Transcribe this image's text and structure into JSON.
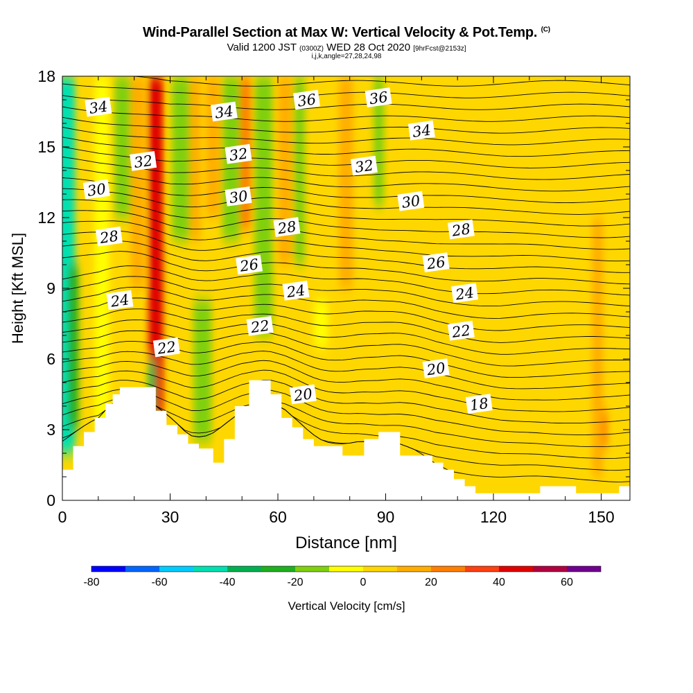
{
  "header": {
    "title": "Wind-Parallel Section at Max W: Vertical Velocity & Pot.Temp.",
    "title_mark": "(C)",
    "valid_prefix": "Valid 1200 JST",
    "valid_utc": "(0300Z)",
    "valid_date": "WED 28 Oct 2020",
    "forecast": "[9hrFcst@2153z]",
    "params": "i,j,k,angle=27,28,24,98"
  },
  "chart_data": {
    "type": "heatmap",
    "xlabel": "Distance [nm]",
    "ylabel": "Height [Kft MSL]",
    "xlim": [
      0,
      158
    ],
    "ylim": [
      0,
      18
    ],
    "x_ticks": [
      0,
      30,
      60,
      90,
      120,
      150
    ],
    "y_ticks": [
      0,
      3,
      6,
      9,
      12,
      15,
      18
    ],
    "x_tick_labels": [
      "0",
      "30",
      "60",
      "90",
      "120",
      "150"
    ],
    "y_tick_labels": [
      "0",
      "3",
      "6",
      "9",
      "12",
      "15",
      "18"
    ],
    "background_value_cms": 0,
    "terrain_kft": [
      [
        0,
        1.3
      ],
      [
        3,
        1.3
      ],
      [
        3,
        2.3
      ],
      [
        6,
        2.3
      ],
      [
        6,
        2.9
      ],
      [
        9,
        2.9
      ],
      [
        9,
        3.5
      ],
      [
        12,
        3.5
      ],
      [
        12,
        4.1
      ],
      [
        14,
        4.1
      ],
      [
        14,
        4.5
      ],
      [
        16,
        4.5
      ],
      [
        16,
        4.8
      ],
      [
        26,
        4.8
      ],
      [
        26,
        3.8
      ],
      [
        29,
        3.8
      ],
      [
        29,
        3.2
      ],
      [
        32,
        3.2
      ],
      [
        32,
        2.8
      ],
      [
        35,
        2.8
      ],
      [
        35,
        2.4
      ],
      [
        38,
        2.4
      ],
      [
        38,
        2.2
      ],
      [
        42,
        2.2
      ],
      [
        42,
        1.6
      ],
      [
        45,
        1.6
      ],
      [
        45,
        2.6
      ],
      [
        48,
        2.6
      ],
      [
        48,
        4.0
      ],
      [
        52,
        4.0
      ],
      [
        52,
        5.1
      ],
      [
        58,
        5.1
      ],
      [
        58,
        4.5
      ],
      [
        61,
        4.5
      ],
      [
        61,
        3.5
      ],
      [
        64,
        3.5
      ],
      [
        64,
        3.1
      ],
      [
        67,
        3.1
      ],
      [
        67,
        2.6
      ],
      [
        70,
        2.6
      ],
      [
        70,
        2.3
      ],
      [
        78,
        2.3
      ],
      [
        78,
        1.9
      ],
      [
        84,
        1.9
      ],
      [
        84,
        2.6
      ],
      [
        88,
        2.6
      ],
      [
        88,
        2.9
      ],
      [
        94,
        2.9
      ],
      [
        94,
        1.9
      ],
      [
        103,
        1.9
      ],
      [
        103,
        1.6
      ],
      [
        106,
        1.6
      ],
      [
        106,
        1.3
      ],
      [
        109,
        1.3
      ],
      [
        109,
        0.9
      ],
      [
        112,
        0.9
      ],
      [
        112,
        0.6
      ],
      [
        115,
        0.6
      ],
      [
        115,
        0.3
      ],
      [
        133,
        0.3
      ],
      [
        133,
        0.6
      ],
      [
        143,
        0.6
      ],
      [
        143,
        0.3
      ],
      [
        155,
        0.3
      ],
      [
        155,
        0.6
      ],
      [
        158,
        0.6
      ]
    ],
    "vertical_velocity_bands": [
      {
        "x": 1,
        "y0": 2.0,
        "y1": 18,
        "w": 5,
        "value": -45
      },
      {
        "x": 3,
        "y0": 3.0,
        "y1": 10,
        "w": 3,
        "value": -30
      },
      {
        "x": 11,
        "y0": 3.0,
        "y1": 18,
        "w": 4,
        "value": -10
      },
      {
        "x": 17,
        "y0": 12.0,
        "y1": 18,
        "w": 5,
        "value": -20
      },
      {
        "x": 21,
        "y0": 9.0,
        "y1": 18,
        "w": 4,
        "value": 10
      },
      {
        "x": 26,
        "y0": 3.5,
        "y1": 18,
        "w": 4,
        "value": 40
      },
      {
        "x": 27,
        "y0": 10.5,
        "y1": 12.5,
        "w": 2,
        "value": 45
      },
      {
        "x": 25,
        "y0": 2.5,
        "y1": 6.0,
        "w": 2,
        "value": -35
      },
      {
        "x": 33,
        "y0": 11.0,
        "y1": 18,
        "w": 5,
        "value": -20
      },
      {
        "x": 37,
        "y0": 11.0,
        "y1": 18,
        "w": 3,
        "value": 10
      },
      {
        "x": 39,
        "y0": 2.5,
        "y1": 8.5,
        "w": 5,
        "value": -15
      },
      {
        "x": 42,
        "y0": 12.0,
        "y1": 18,
        "w": 4,
        "value": 15
      },
      {
        "x": 47,
        "y0": 11.0,
        "y1": 18,
        "w": 5,
        "value": -20
      },
      {
        "x": 51,
        "y0": 11.5,
        "y1": 18,
        "w": 3,
        "value": 20
      },
      {
        "x": 56,
        "y0": 7.0,
        "y1": 18,
        "w": 5,
        "value": -20
      },
      {
        "x": 62,
        "y0": 10.0,
        "y1": 18,
        "w": 4,
        "value": 15
      },
      {
        "x": 66,
        "y0": 10.0,
        "y1": 18,
        "w": 3,
        "value": -15
      },
      {
        "x": 72,
        "y0": 6.5,
        "y1": 8.5,
        "w": 4,
        "value": -10
      },
      {
        "x": 79,
        "y0": 9.0,
        "y1": 18,
        "w": 4,
        "value": 10
      },
      {
        "x": 84,
        "y0": 6.0,
        "y1": 18,
        "w": 4,
        "value": 5
      },
      {
        "x": 88,
        "y0": 12.5,
        "y1": 18,
        "w": 3,
        "value": -15
      },
      {
        "x": 99,
        "y0": 4.0,
        "y1": 18,
        "w": 5,
        "value": 5
      },
      {
        "x": 113,
        "y0": 2.5,
        "y1": 16,
        "w": 4,
        "value": 5
      },
      {
        "x": 126,
        "y0": 2.0,
        "y1": 14,
        "w": 4,
        "value": 5
      },
      {
        "x": 140,
        "y0": 1.0,
        "y1": 16,
        "w": 5,
        "value": 5
      },
      {
        "x": 149,
        "y0": 1.0,
        "y1": 12,
        "w": 3,
        "value": 10
      },
      {
        "x": 151,
        "y0": 2.2,
        "y1": 3.8,
        "w": 1.5,
        "value": 20
      }
    ],
    "pot_temp_contour_labels": [
      {
        "text": "34",
        "x": 10,
        "y": 16.7
      },
      {
        "text": "32",
        "x": 22.5,
        "y": 14.4
      },
      {
        "text": "30",
        "x": 9.5,
        "y": 13.2
      },
      {
        "text": "28",
        "x": 13,
        "y": 11.2
      },
      {
        "text": "24",
        "x": 16,
        "y": 8.5
      },
      {
        "text": "22",
        "x": 29,
        "y": 6.5
      },
      {
        "text": "34",
        "x": 45,
        "y": 16.5
      },
      {
        "text": "32",
        "x": 49,
        "y": 14.7
      },
      {
        "text": "30",
        "x": 49,
        "y": 12.9
      },
      {
        "text": "26",
        "x": 52,
        "y": 10.0
      },
      {
        "text": "22",
        "x": 55,
        "y": 7.4
      },
      {
        "text": "36",
        "x": 68,
        "y": 17.0
      },
      {
        "text": "28",
        "x": 62.5,
        "y": 11.6
      },
      {
        "text": "24",
        "x": 65,
        "y": 8.9
      },
      {
        "text": "20",
        "x": 67,
        "y": 4.5
      },
      {
        "text": "36",
        "x": 88,
        "y": 17.1
      },
      {
        "text": "32",
        "x": 84,
        "y": 14.2
      },
      {
        "text": "34",
        "x": 100,
        "y": 15.7
      },
      {
        "text": "30",
        "x": 97,
        "y": 12.7
      },
      {
        "text": "26",
        "x": 104,
        "y": 10.1
      },
      {
        "text": "28",
        "x": 111,
        "y": 11.5
      },
      {
        "text": "24",
        "x": 112,
        "y": 8.8
      },
      {
        "text": "22",
        "x": 111,
        "y": 7.2
      },
      {
        "text": "20",
        "x": 104,
        "y": 5.6
      },
      {
        "text": "18",
        "x": 116,
        "y": 4.1
      }
    ],
    "colorbar": {
      "label": "Vertical Velocity [cm/s]",
      "boundaries": [
        -80,
        -70,
        -60,
        -50,
        -40,
        -30,
        -20,
        -10,
        0,
        10,
        20,
        30,
        40,
        50,
        60,
        70
      ],
      "tick_labels": [
        "-80",
        "-60",
        "-40",
        "-20",
        "0",
        "20",
        "40",
        "60"
      ],
      "tick_values": [
        -80,
        -60,
        -40,
        -20,
        0,
        20,
        40,
        60
      ],
      "colors": [
        "#0000ff",
        "#0066ff",
        "#00ccff",
        "#00e0b0",
        "#00b050",
        "#20b020",
        "#80d010",
        "#ffff00",
        "#ffd700",
        "#ffae00",
        "#ff8000",
        "#ff4010",
        "#e00000",
        "#b00040",
        "#70008f"
      ]
    }
  }
}
